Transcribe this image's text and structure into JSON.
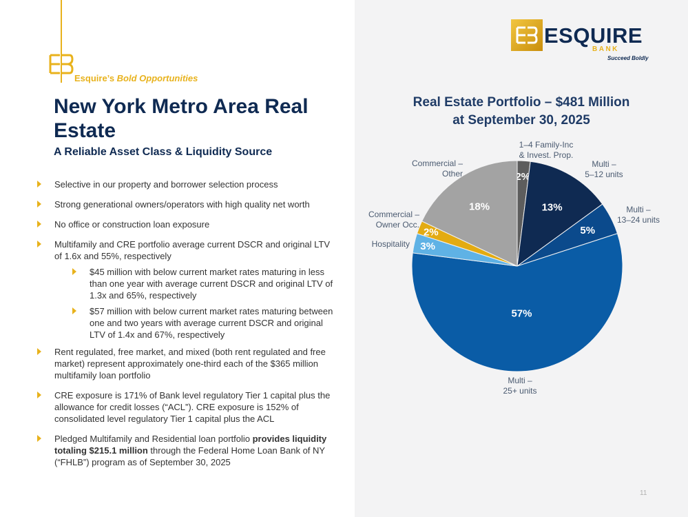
{
  "brand": {
    "name": "ESQUIRE",
    "bank": "BANK",
    "tagline": "Succeed Boldly",
    "mark_text": "EB",
    "gold": "#e8b21c",
    "navy": "#0f2a52"
  },
  "header": {
    "kicker_prefix": "Esquire’s ",
    "kicker_italic": "Bold Opportunities",
    "title": "New York Metro Area Real Estate",
    "subtitle": "A Reliable Asset Class & Liquidity Source"
  },
  "bullets": [
    "Selective in our property and borrower selection process",
    "Strong generational owners/operators with high quality net worth",
    "No office or construction loan exposure",
    "Multifamily and CRE portfolio average current DSCR and original LTV of 1.6x and 55%, respectively",
    "$45 million with below current market rates maturing in less than one year with average current DSCR and original LTV of 1.3x and 65%, respectively",
    "$57 million with below current market rates maturing between one and two years with average current DSCR and original LTV of 1.4x and 67%, respectively",
    "Rent regulated, free market, and mixed (both rent regulated and free market) represent approximately one-third each of the $365 million multifamily loan portfolio",
    "CRE exposure is 171% of Bank level regulatory Tier 1 capital plus the allowance for credit losses (“ACL”). CRE exposure is 152% of consolidated level regulatory Tier 1 capital plus the ACL",
    "Pledged Multifamily and Residential loan portfolio ",
    "provides liquidity totaling $215.1 million",
    " through the Federal Home Loan Bank of NY (“FHLB”) program as of September 30, 2025"
  ],
  "chart_data": {
    "type": "pie",
    "title": "Real Estate Portfolio – $481 Million",
    "subtitle": "at September 30, 2025",
    "slices": [
      {
        "label_lines": [
          "1–4 Family-Inc",
          "& Invest. Prop."
        ],
        "value": 2,
        "display": "2%",
        "color": "#5d5d5d"
      },
      {
        "label_lines": [
          "Multi –",
          "5–12 units"
        ],
        "value": 13,
        "display": "13%",
        "color": "#0f2a52"
      },
      {
        "label_lines": [
          "Multi –",
          "13–24 units"
        ],
        "value": 5,
        "display": "5%",
        "color": "#0b4a8c"
      },
      {
        "label_lines": [
          "Multi –",
          "25+ units"
        ],
        "value": 57,
        "display": "57%",
        "color": "#0a5ca6"
      },
      {
        "label_lines": [
          "Hospitality"
        ],
        "value": 3,
        "display": "3%",
        "color": "#5fb2e5"
      },
      {
        "label_lines": [
          "Commercial –",
          "Owner Occ."
        ],
        "value": 2,
        "display": "2%",
        "color": "#e3ab12"
      },
      {
        "label_lines": [
          "Commercial –",
          "Other"
        ],
        "value": 18,
        "display": "18%",
        "color": "#a3a3a3"
      }
    ]
  },
  "footer": {
    "page_number": "11"
  }
}
